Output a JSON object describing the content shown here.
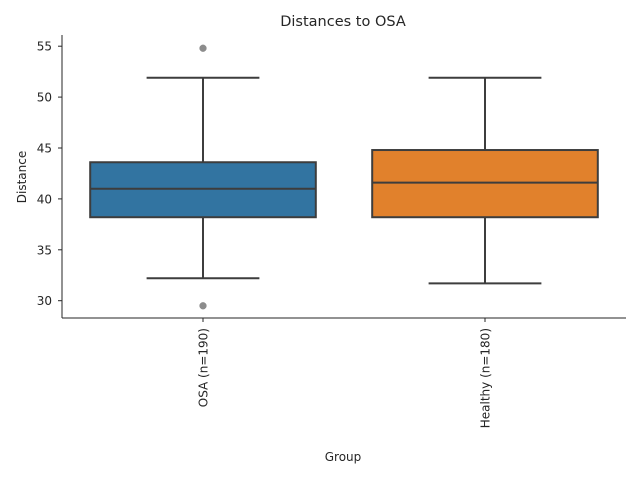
{
  "chart_data": {
    "type": "box",
    "title": "Distances to OSA",
    "xlabel": "Group",
    "ylabel": "Distance",
    "ylim": [
      28.3,
      56.1
    ],
    "yticks": [
      30,
      35,
      40,
      45,
      50,
      55
    ],
    "grid": false,
    "groups": [
      {
        "label": "OSA (n=190)",
        "color": "#3274a1",
        "whisker_low": 32.2,
        "q1": 38.2,
        "median": 41.0,
        "q3": 43.6,
        "whisker_high": 51.9,
        "outliers": [
          29.5,
          54.8
        ]
      },
      {
        "label": "Healthy (n=180)",
        "color": "#e1812c",
        "whisker_low": 31.7,
        "q1": 38.2,
        "median": 41.6,
        "q3": 44.8,
        "whisker_high": 51.9,
        "outliers": []
      }
    ]
  },
  "colors": {
    "line": "#3d3d3d",
    "outlier": "#8c8c8c",
    "spine": "#262626"
  }
}
